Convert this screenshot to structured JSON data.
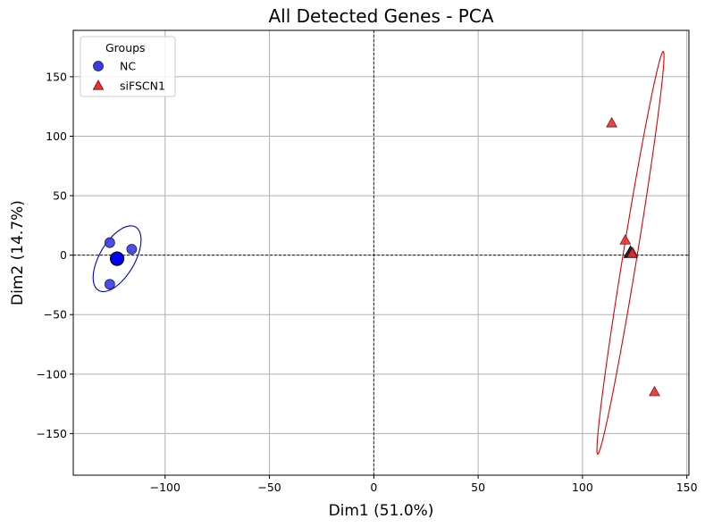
{
  "chart_data": {
    "type": "scatter",
    "title": "All Detected Genes - PCA",
    "xlabel": "Dim1 (51.0%)",
    "ylabel": "Dim2 (14.7%)",
    "xlim": [
      -144,
      151
    ],
    "ylim": [
      -185,
      189
    ],
    "xticks": [
      -100,
      -50,
      0,
      50,
      100,
      150
    ],
    "yticks": [
      -150,
      -100,
      -50,
      0,
      50,
      100,
      150
    ],
    "xtick_labels": [
      "−100",
      "−50",
      "0",
      "50",
      "100",
      "150"
    ],
    "ytick_labels": [
      "−150",
      "−100",
      "−50",
      "0",
      "50",
      "100",
      "150"
    ],
    "grid": true,
    "reference_lines": {
      "x": 0,
      "y": 0,
      "style": "dashed"
    },
    "legend": {
      "title": "Groups",
      "position": "top-left"
    },
    "series": [
      {
        "name": "NC",
        "marker": "circle",
        "color": "#3b3be0",
        "edge_color": "#1a1a6e",
        "points": [
          [
            -126.5,
            10.5
          ],
          [
            -116,
            5
          ],
          [
            -126.5,
            -24.5
          ]
        ],
        "centroid": [
          -123,
          -3
        ],
        "ellipse": {
          "center": [
            -123,
            -3
          ],
          "semi_major": 28.5,
          "semi_minor": 9.1,
          "angle_deg": 75
        }
      },
      {
        "name": "siFSCN1",
        "marker": "triangle",
        "color": "#e83030",
        "edge_color": "#7a1010",
        "points": [
          [
            114,
            111
          ],
          [
            120.5,
            12.5
          ],
          [
            124,
            2
          ],
          [
            134.5,
            -115
          ]
        ],
        "centroid": [
          123,
          2
        ],
        "ellipse": {
          "center": [
            123,
            2
          ],
          "semi_major": 170,
          "semi_minor": 3.4,
          "angle_deg": 84.7
        }
      }
    ]
  }
}
